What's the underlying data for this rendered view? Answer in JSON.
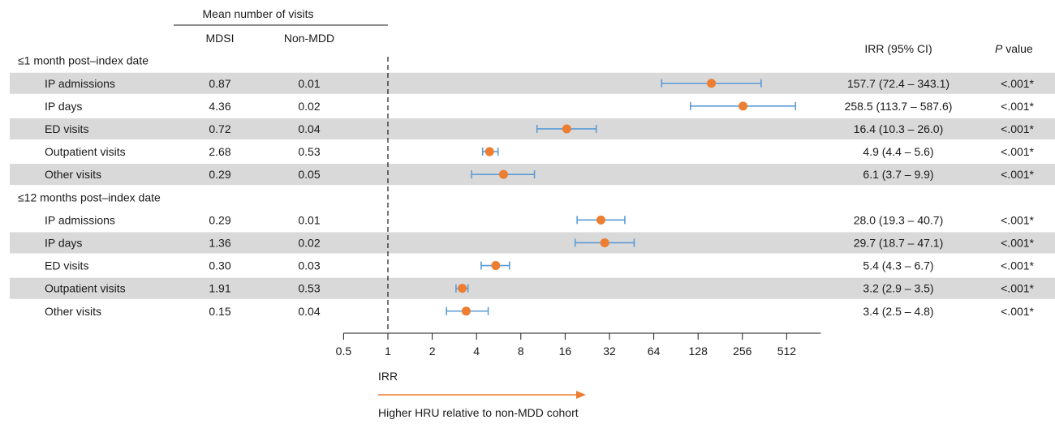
{
  "header": {
    "group_title": "Mean number of visits",
    "col_mdsi": "MDSI",
    "col_nonmdd": "Non-MDD",
    "col_irr": "IRR (95% CI)",
    "col_p_italic": "P",
    "col_p_rest": " value"
  },
  "chart_data": {
    "type": "forest",
    "scale": "log2",
    "x_ticks": [
      0.5,
      1,
      2,
      4,
      8,
      16,
      32,
      64,
      128,
      256,
      512
    ],
    "x_tick_labels": [
      "0.5",
      "1",
      "2",
      "4",
      "8",
      "16",
      "32",
      "64",
      "128",
      "256",
      "512"
    ],
    "xlim": [
      0.5,
      1100
    ],
    "reference_line": 1,
    "xlabel": "IRR",
    "arrow_label": "Higher HRU relative to non-MDD cohort",
    "colors": {
      "point": "#ED7D31",
      "ci": "#5B9BD5",
      "band": "#D9D9D9",
      "arrow": "#ED7D31"
    },
    "sections": [
      {
        "title": "≤1 month post–index date",
        "rows": [
          {
            "label": "IP admissions",
            "mdsi": "0.87",
            "nonmdd": "0.01",
            "irr": 157.7,
            "lo": 72.4,
            "hi": 343.1,
            "irr_text": "157.7 (72.4 – 343.1)",
            "p": "<.001*"
          },
          {
            "label": "IP days",
            "mdsi": "4.36",
            "nonmdd": "0.02",
            "irr": 258.5,
            "lo": 113.7,
            "hi": 587.6,
            "irr_text": "258.5 (113.7 – 587.6)",
            "p": "<.001*"
          },
          {
            "label": "ED visits",
            "mdsi": "0.72",
            "nonmdd": "0.04",
            "irr": 16.4,
            "lo": 10.3,
            "hi": 26.0,
            "irr_text": "16.4 (10.3 – 26.0)",
            "p": "<.001*"
          },
          {
            "label": "Outpatient visits",
            "mdsi": "2.68",
            "nonmdd": "0.53",
            "irr": 4.9,
            "lo": 4.4,
            "hi": 5.6,
            "irr_text": "4.9 (4.4 – 5.6)",
            "p": "<.001*"
          },
          {
            "label": "Other visits",
            "mdsi": "0.29",
            "nonmdd": "0.05",
            "irr": 6.1,
            "lo": 3.7,
            "hi": 9.9,
            "irr_text": "6.1 (3.7 – 9.9)",
            "p": "<.001*"
          }
        ]
      },
      {
        "title": "≤12 months post–index date",
        "rows": [
          {
            "label": "IP admissions",
            "mdsi": "0.29",
            "nonmdd": "0.01",
            "irr": 28.0,
            "lo": 19.3,
            "hi": 40.7,
            "irr_text": "28.0 (19.3 – 40.7)",
            "p": "<.001*"
          },
          {
            "label": "IP days",
            "mdsi": "1.36",
            "nonmdd": "0.02",
            "irr": 29.7,
            "lo": 18.7,
            "hi": 47.1,
            "irr_text": "29.7 (18.7 – 47.1)",
            "p": "<.001*"
          },
          {
            "label": "ED visits",
            "mdsi": "0.30",
            "nonmdd": "0.03",
            "irr": 5.4,
            "lo": 4.3,
            "hi": 6.7,
            "irr_text": "5.4 (4.3 – 6.7)",
            "p": "<.001*"
          },
          {
            "label": "Outpatient visits",
            "mdsi": "1.91",
            "nonmdd": "0.53",
            "irr": 3.2,
            "lo": 2.9,
            "hi": 3.5,
            "irr_text": "3.2 (2.9 – 3.5)",
            "p": "<.001*"
          },
          {
            "label": "Other visits",
            "mdsi": "0.15",
            "nonmdd": "0.04",
            "irr": 3.4,
            "lo": 2.5,
            "hi": 4.8,
            "irr_text": "3.4 (2.5 – 4.8)",
            "p": "<.001*"
          }
        ]
      }
    ]
  }
}
